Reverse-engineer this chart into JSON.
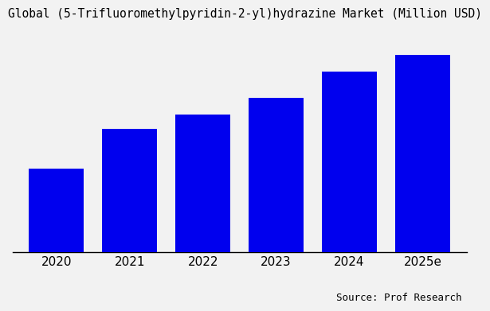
{
  "title": "Global (5-Trifluoromethylpyridin-2-yl)hydrazine Market (Million USD)",
  "categories": [
    "2020",
    "2021",
    "2022",
    "2023",
    "2024",
    "2025e"
  ],
  "values": [
    35,
    52,
    58,
    65,
    76,
    83
  ],
  "bar_color": "#0000EE",
  "background_color": "#f2f2f2",
  "source_text": "Source: Prof Research",
  "title_fontsize": 10.5,
  "tick_fontsize": 11,
  "source_fontsize": 9,
  "ylim": [
    0,
    95
  ],
  "bar_width": 0.75
}
